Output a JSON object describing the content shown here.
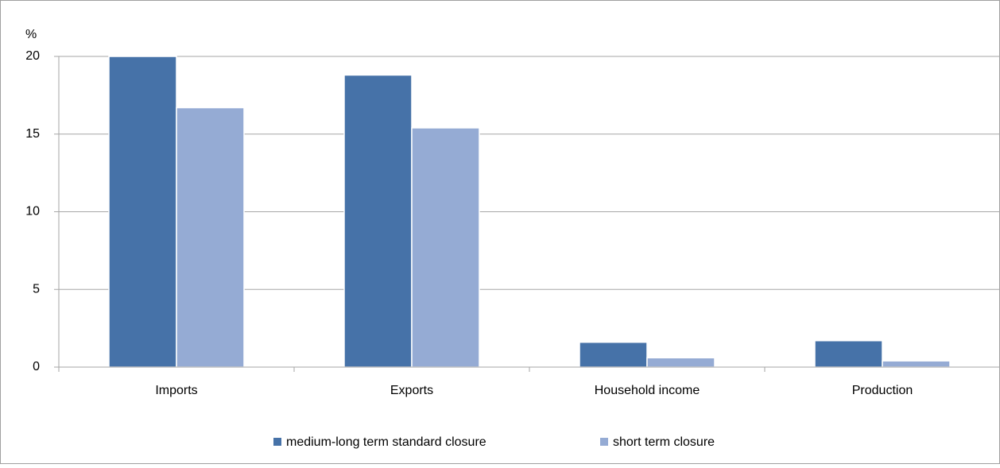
{
  "chart_data": {
    "type": "bar",
    "y_unit": "%",
    "categories": [
      "Imports",
      "Exports",
      "Household income",
      "Production"
    ],
    "series": [
      {
        "name": "medium-long term standard closure",
        "color": "#4672a8",
        "values": [
          20.0,
          18.8,
          1.6,
          1.7
        ]
      },
      {
        "name": "short term closure",
        "color": "#95abd4",
        "values": [
          16.7,
          15.4,
          0.6,
          0.4
        ]
      }
    ],
    "ylim": [
      0,
      20
    ],
    "yticks": [
      0,
      5,
      10,
      15,
      20
    ],
    "grid": true,
    "legend": "bottom"
  }
}
